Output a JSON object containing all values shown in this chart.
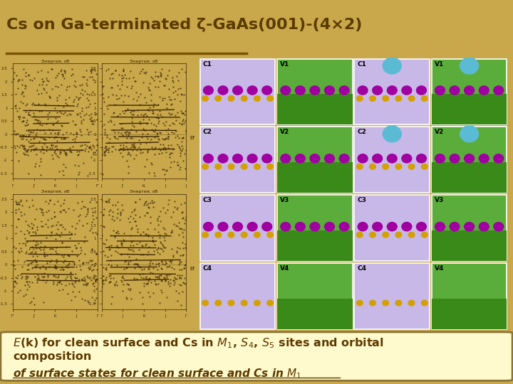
{
  "bg_color": "#c8a84b",
  "title": "Cs on Ga-terminated ζ-GaAs(001)-(4×2)",
  "title_color": "#5c3a00",
  "title_fontsize": 16,
  "divider_color": "#7a5500",
  "caption_box_color": "#fffacd",
  "caption_box_border": "#8B7536",
  "caption_color": "#5c3a00",
  "caption_fontsize": 11.5,
  "cell_labels": [
    "C1",
    "V1",
    "C1",
    "V1",
    "C2",
    "V2",
    "C2",
    "V2",
    "C3",
    "V3",
    "C3",
    "V3",
    "C4",
    "V4",
    "C4",
    "V4"
  ],
  "cell_color_C": "#c8b8e8",
  "cell_color_V": "#5aad3a",
  "atom_yellow": "#d4a000",
  "atom_purple": "#a000a0",
  "atom_blue": "#5bbbd4",
  "y_labels": [
    "Энергия, эВ",
    "Энергия, эВ",
    "Энергия, эВ",
    "Энергия, эВ"
  ],
  "x_tick_labels": [
    [
      "Γ",
      "J'",
      "K",
      "J",
      "Γ'"
    ],
    [
      "J",
      "J'",
      "K,",
      "J",
      "J"
    ],
    [
      "Γ'",
      "J'",
      "K",
      "J",
      "Γ"
    ],
    [
      "Γ",
      "J",
      "K",
      "J",
      "Γ"
    ]
  ],
  "yticks": [
    2.5,
    2,
    1.5,
    1,
    0.5,
    0,
    -0.5,
    -1,
    -1.5
  ],
  "ylim": [
    -1.7,
    2.7
  ]
}
